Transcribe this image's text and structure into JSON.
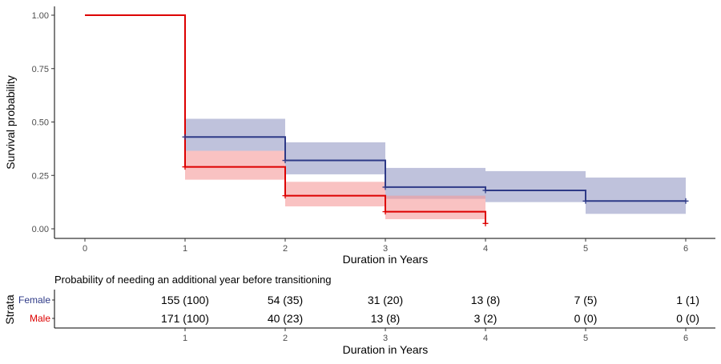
{
  "chart_data": [
    {
      "type": "line",
      "subtype": "kaplan-meier-step",
      "xlabel": "Duration in Years",
      "ylabel": "Survival probability",
      "xlim": [
        -0.3,
        6.3
      ],
      "ylim": [
        -0.045,
        1.04
      ],
      "x_ticks": [
        "0",
        "1",
        "2",
        "3",
        "4",
        "5",
        "6"
      ],
      "y_ticks": [
        "0.00",
        "0.25",
        "0.50",
        "0.75",
        "1.00"
      ],
      "grid": false,
      "series": [
        {
          "name": "Female",
          "color": "#2e3a87",
          "band_color": "#9599c4",
          "steps": [
            {
              "x": 0,
              "y": 1.0
            },
            {
              "x": 1,
              "y": 0.43
            },
            {
              "x": 2,
              "y": 0.32
            },
            {
              "x": 3,
              "y": 0.195
            },
            {
              "x": 4,
              "y": 0.18
            },
            {
              "x": 5,
              "y": 0.13
            },
            {
              "x": 6,
              "y": 0.13
            }
          ],
          "band": [
            {
              "x0": 1,
              "x1": 2,
              "lo": 0.365,
              "hi": 0.515
            },
            {
              "x0": 2,
              "x1": 3,
              "lo": 0.255,
              "hi": 0.405
            },
            {
              "x0": 3,
              "x1": 4,
              "lo": 0.14,
              "hi": 0.285
            },
            {
              "x0": 4,
              "x1": 5,
              "lo": 0.125,
              "hi": 0.27
            },
            {
              "x0": 5,
              "x1": 6,
              "lo": 0.07,
              "hi": 0.24
            }
          ],
          "censor_marks": [
            {
              "x": 1,
              "y": 0.43
            },
            {
              "x": 2,
              "y": 0.32
            },
            {
              "x": 3,
              "y": 0.195
            },
            {
              "x": 4,
              "y": 0.18
            },
            {
              "x": 5,
              "y": 0.13
            },
            {
              "x": 6,
              "y": 0.13
            }
          ]
        },
        {
          "name": "Male",
          "color": "#dd0000",
          "band_color": "#f59a9a",
          "steps": [
            {
              "x": 0,
              "y": 1.0
            },
            {
              "x": 1,
              "y": 0.29
            },
            {
              "x": 2,
              "y": 0.155
            },
            {
              "x": 3,
              "y": 0.08
            },
            {
              "x": 4,
              "y": 0.08
            }
          ],
          "end_drop": {
            "x": 4,
            "y": 0.025
          },
          "band": [
            {
              "x0": 1,
              "x1": 2,
              "lo": 0.23,
              "hi": 0.365
            },
            {
              "x0": 2,
              "x1": 3,
              "lo": 0.105,
              "hi": 0.22
            },
            {
              "x0": 3,
              "x1": 4,
              "lo": 0.045,
              "hi": 0.155
            }
          ],
          "censor_marks": [
            {
              "x": 1,
              "y": 0.29
            },
            {
              "x": 2,
              "y": 0.155
            },
            {
              "x": 3,
              "y": 0.08
            },
            {
              "x": 4,
              "y": 0.025
            }
          ]
        }
      ]
    },
    {
      "type": "table",
      "title": "Probability of needing an additional year before transitioning",
      "ylabel": "Strata",
      "xlabel": "Duration in Years",
      "x_ticks": [
        "1",
        "2",
        "3",
        "4",
        "5",
        "6"
      ],
      "rows": [
        {
          "label": "Female",
          "color": "#2e3a87",
          "cells": [
            "155 (100)",
            "54 (35)",
            "31 (20)",
            "13 (8)",
            "7 (5)",
            "1 (1)"
          ]
        },
        {
          "label": "Male",
          "color": "#dd0000",
          "cells": [
            "171 (100)",
            "40 (23)",
            "13 (8)",
            "3 (2)",
            "0 (0)",
            "0 (0)"
          ]
        }
      ]
    }
  ]
}
